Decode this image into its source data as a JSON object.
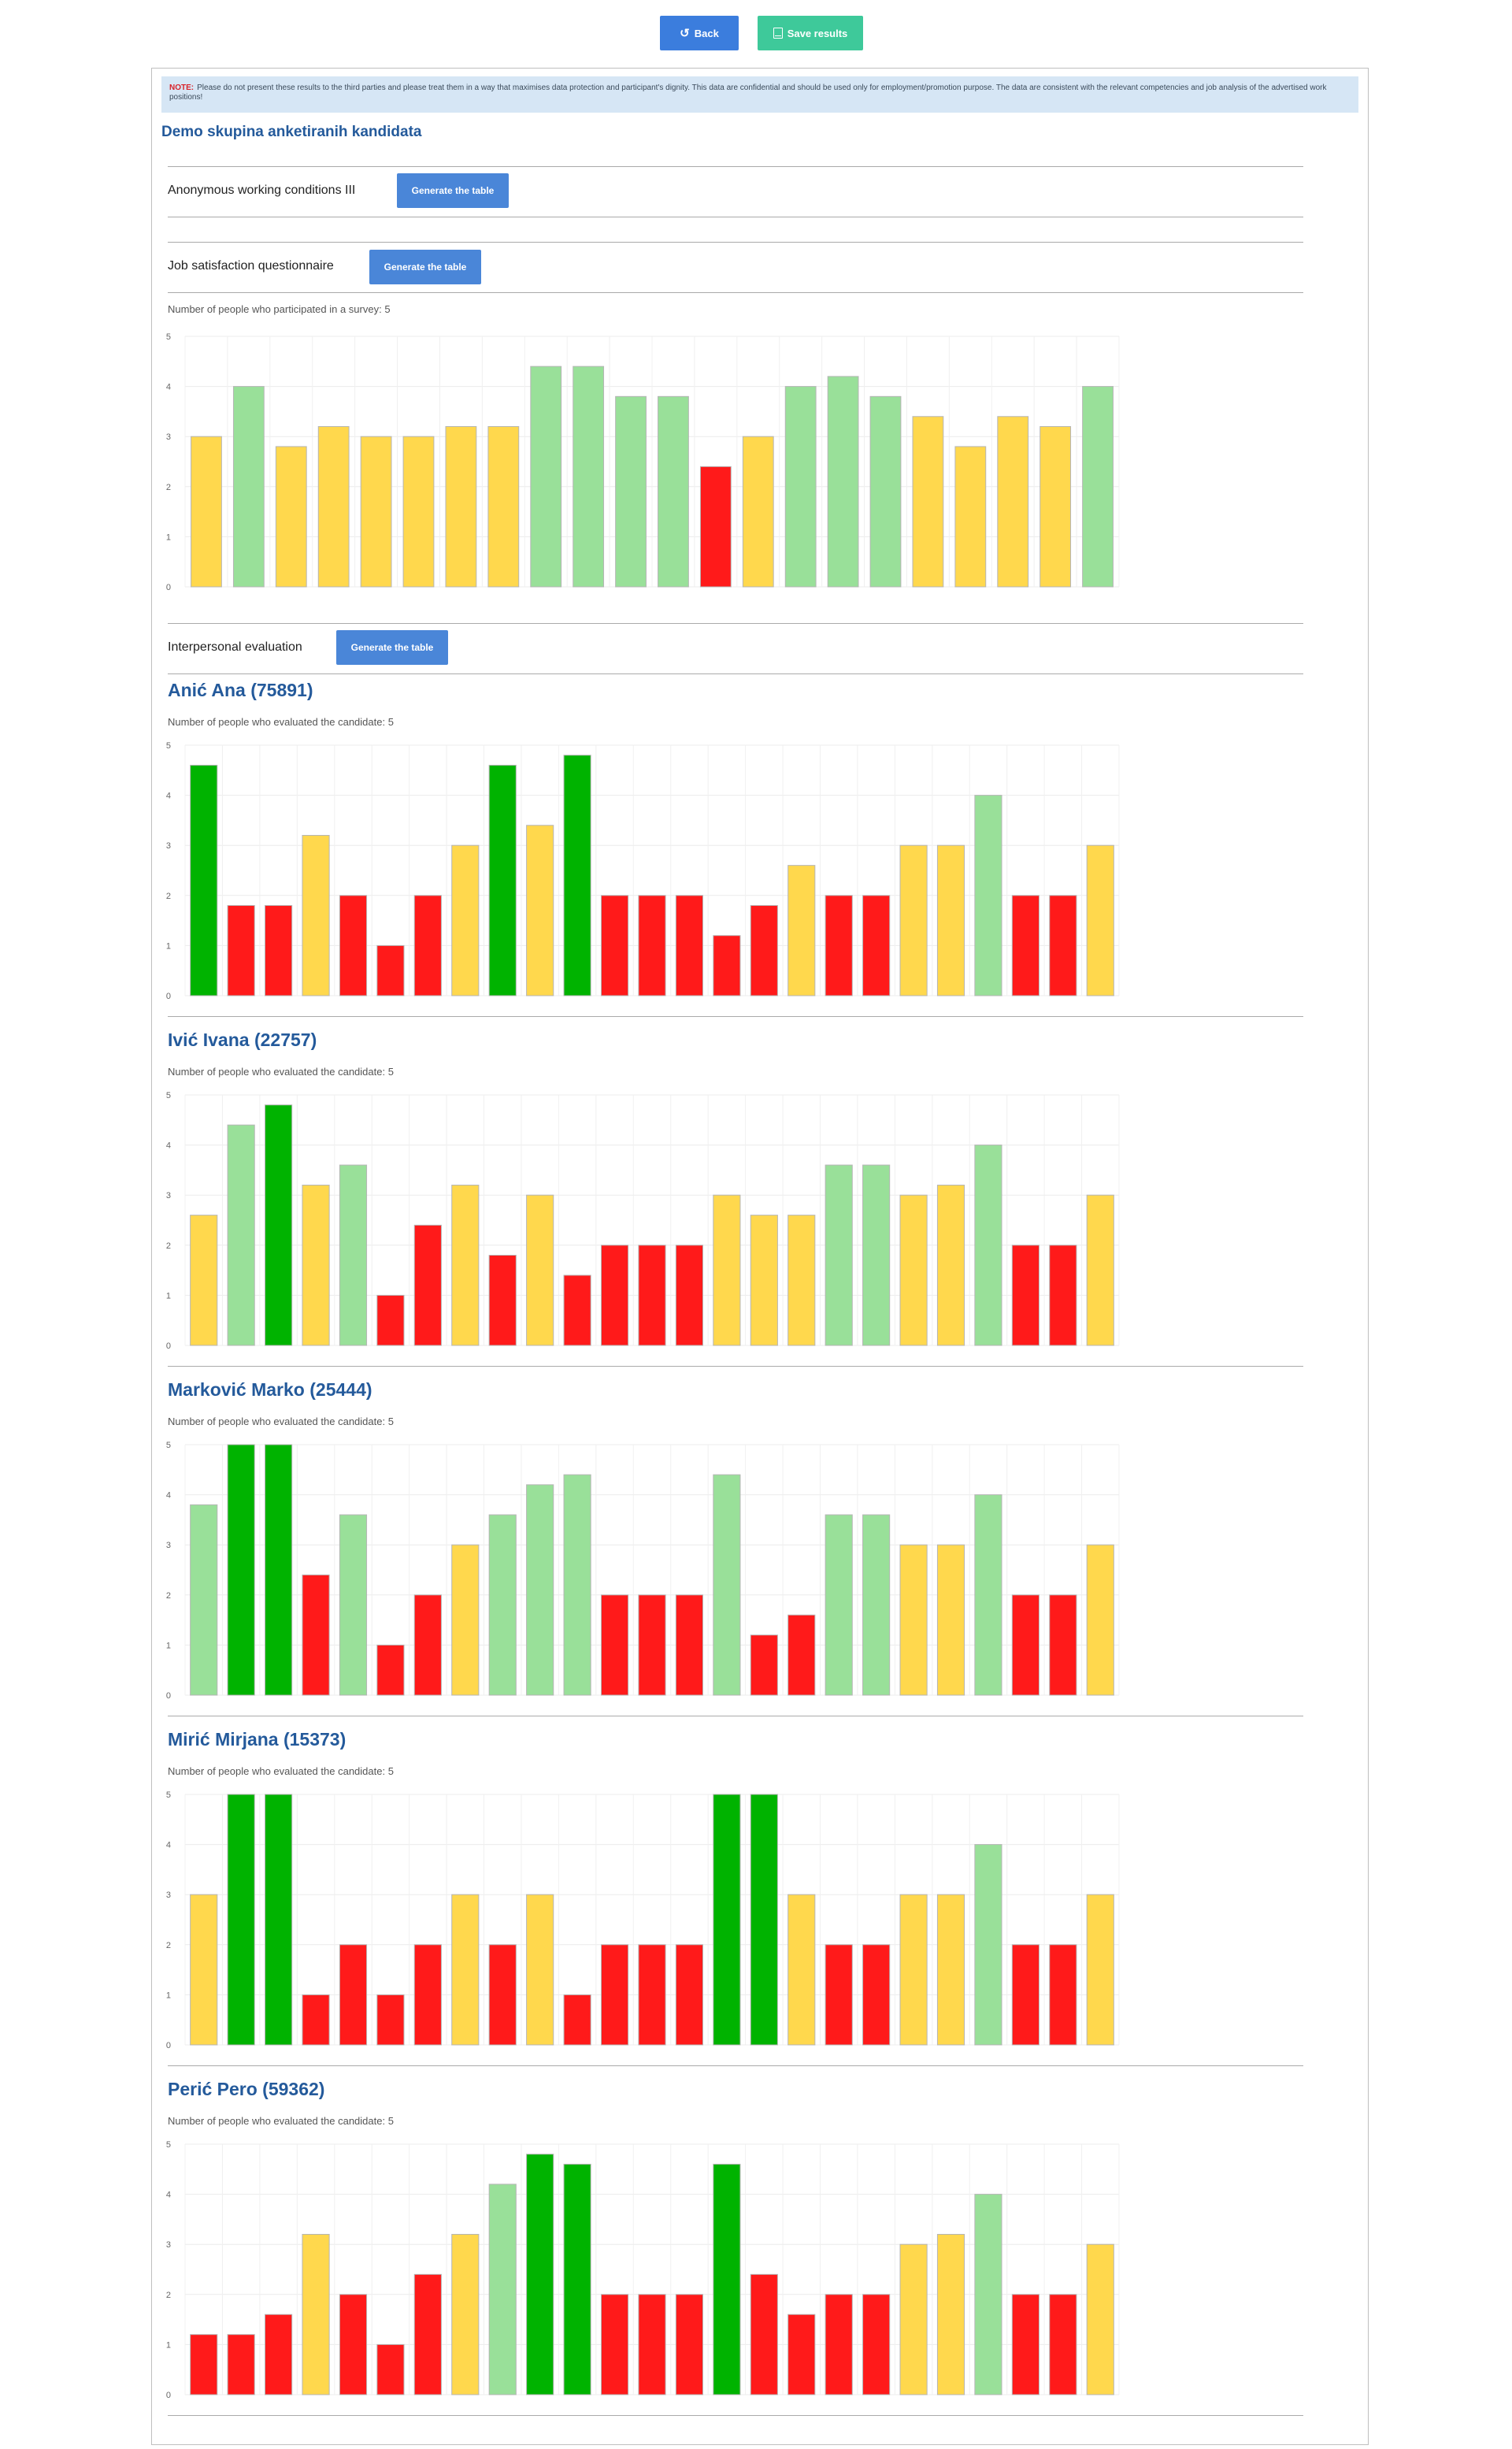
{
  "toolbar": {
    "back_label": "Back",
    "save_label": "Save results",
    "back_icon": "undo-icon",
    "save_icon": "document-icon"
  },
  "note": {
    "label": "NOTE:",
    "text": "Please do not present these results to the third parties and please treat them in a way that maximises data protection and participant's dignity. This data are confidential and should be used only for employment/promotion purpose. The data are consistent with the relevant competencies and job analysis of the advertised work positions!"
  },
  "group_title": "Demo skupina anketiranih kandidata",
  "sections": {
    "anonymous": {
      "label": "Anonymous working conditions III",
      "button": "Generate the table"
    },
    "job": {
      "label": "Job satisfaction questionnaire",
      "button": "Generate the table"
    },
    "interpersonal": {
      "label": "Interpersonal evaluation",
      "button": "Generate the table"
    }
  },
  "colors": {
    "red": "#ff1a1a",
    "yellow": "#ffd84d",
    "light_green": "#99e099",
    "green": "#00b300",
    "accent": "#245a9b"
  },
  "job_satisfaction": {
    "count_text": "Number of people who participated in a survey: 5",
    "chart_data": {
      "type": "bar",
      "ylim": [
        0,
        5
      ],
      "yticks": [
        0,
        1,
        2,
        3,
        4,
        5
      ],
      "grid": true,
      "values": [
        3,
        4,
        2.8,
        3.2,
        3,
        3,
        3.2,
        3.2,
        4.4,
        4.4,
        3.8,
        3.8,
        2.4,
        3,
        4,
        4.2,
        3.8,
        3.4,
        2.8,
        3.4,
        3.2,
        4
      ],
      "colors": [
        "yellow",
        "light_green",
        "yellow",
        "yellow",
        "yellow",
        "yellow",
        "yellow",
        "yellow",
        "light_green",
        "light_green",
        "light_green",
        "light_green",
        "red",
        "yellow",
        "light_green",
        "light_green",
        "light_green",
        "yellow",
        "yellow",
        "yellow",
        "yellow",
        "light_green"
      ]
    }
  },
  "candidates": [
    {
      "name": "Anić Ana (75891)",
      "count_text": "Number of people who evaluated the candidate: 5",
      "chart_data": {
        "type": "bar",
        "ylim": [
          0,
          5
        ],
        "yticks": [
          0,
          1,
          2,
          3,
          4,
          5
        ],
        "grid": true,
        "values": [
          4.6,
          1.8,
          1.8,
          3.2,
          2,
          1,
          2,
          3,
          4.6,
          3.4,
          4.8,
          2,
          2,
          2,
          1.2,
          1.8,
          2.6,
          2,
          2,
          3,
          3,
          4,
          2,
          2,
          3
        ],
        "colors": [
          "green",
          "red",
          "red",
          "yellow",
          "red",
          "red",
          "red",
          "yellow",
          "green",
          "yellow",
          "green",
          "red",
          "red",
          "red",
          "red",
          "red",
          "yellow",
          "red",
          "red",
          "yellow",
          "yellow",
          "light_green",
          "red",
          "red",
          "yellow"
        ]
      }
    },
    {
      "name": "Ivić Ivana (22757)",
      "count_text": "Number of people who evaluated the candidate: 5",
      "chart_data": {
        "type": "bar",
        "ylim": [
          0,
          5
        ],
        "yticks": [
          0,
          1,
          2,
          3,
          4,
          5
        ],
        "grid": true,
        "values": [
          2.6,
          4.4,
          4.8,
          3.2,
          3.6,
          1,
          2.4,
          3.2,
          1.8,
          3,
          1.4,
          2,
          2,
          2,
          3,
          2.6,
          2.6,
          3.6,
          3.6,
          3,
          3.2,
          4,
          2,
          2,
          3
        ],
        "colors": [
          "yellow",
          "light_green",
          "green",
          "yellow",
          "light_green",
          "red",
          "red",
          "yellow",
          "red",
          "yellow",
          "red",
          "red",
          "red",
          "red",
          "yellow",
          "yellow",
          "yellow",
          "light_green",
          "light_green",
          "yellow",
          "yellow",
          "light_green",
          "red",
          "red",
          "yellow"
        ]
      }
    },
    {
      "name": "Marković Marko (25444)",
      "count_text": "Number of people who evaluated the candidate: 5",
      "chart_data": {
        "type": "bar",
        "ylim": [
          0,
          5
        ],
        "yticks": [
          0,
          1,
          2,
          3,
          4,
          5
        ],
        "grid": true,
        "values": [
          3.8,
          5,
          5,
          2.4,
          3.6,
          1,
          2,
          3,
          3.6,
          4.2,
          4.4,
          2,
          2,
          2,
          4.4,
          1.2,
          1.6,
          3.6,
          3.6,
          3,
          3,
          4,
          2,
          2,
          3
        ],
        "colors": [
          "light_green",
          "green",
          "green",
          "red",
          "light_green",
          "red",
          "red",
          "yellow",
          "light_green",
          "light_green",
          "light_green",
          "red",
          "red",
          "red",
          "light_green",
          "red",
          "red",
          "light_green",
          "light_green",
          "yellow",
          "yellow",
          "light_green",
          "red",
          "red",
          "yellow"
        ]
      }
    },
    {
      "name": "Mirić Mirjana (15373)",
      "count_text": "Number of people who evaluated the candidate: 5",
      "chart_data": {
        "type": "bar",
        "ylim": [
          0,
          5
        ],
        "yticks": [
          0,
          1,
          2,
          3,
          4,
          5
        ],
        "grid": true,
        "values": [
          3,
          5,
          5,
          1,
          2,
          1,
          2,
          3,
          2,
          3,
          1,
          2,
          2,
          2,
          5,
          5,
          3,
          2,
          2,
          3,
          3,
          4,
          2,
          2,
          3
        ],
        "colors": [
          "yellow",
          "green",
          "green",
          "red",
          "red",
          "red",
          "red",
          "yellow",
          "red",
          "yellow",
          "red",
          "red",
          "red",
          "red",
          "green",
          "green",
          "yellow",
          "red",
          "red",
          "yellow",
          "yellow",
          "light_green",
          "red",
          "red",
          "yellow"
        ]
      }
    },
    {
      "name": "Perić Pero (59362)",
      "count_text": "Number of people who evaluated the candidate: 5",
      "chart_data": {
        "type": "bar",
        "ylim": [
          0,
          5
        ],
        "yticks": [
          0,
          1,
          2,
          3,
          4,
          5
        ],
        "grid": true,
        "values": [
          1.2,
          1.2,
          1.6,
          3.2,
          2,
          1,
          2.4,
          3.2,
          4.2,
          4.8,
          4.6,
          2,
          2,
          2,
          4.6,
          2.4,
          1.6,
          2,
          2,
          3,
          3.2,
          4,
          2,
          2,
          3
        ],
        "colors": [
          "red",
          "red",
          "red",
          "yellow",
          "red",
          "red",
          "red",
          "yellow",
          "light_green",
          "green",
          "green",
          "red",
          "red",
          "red",
          "green",
          "red",
          "red",
          "red",
          "red",
          "yellow",
          "yellow",
          "light_green",
          "red",
          "red",
          "yellow"
        ]
      }
    }
  ]
}
